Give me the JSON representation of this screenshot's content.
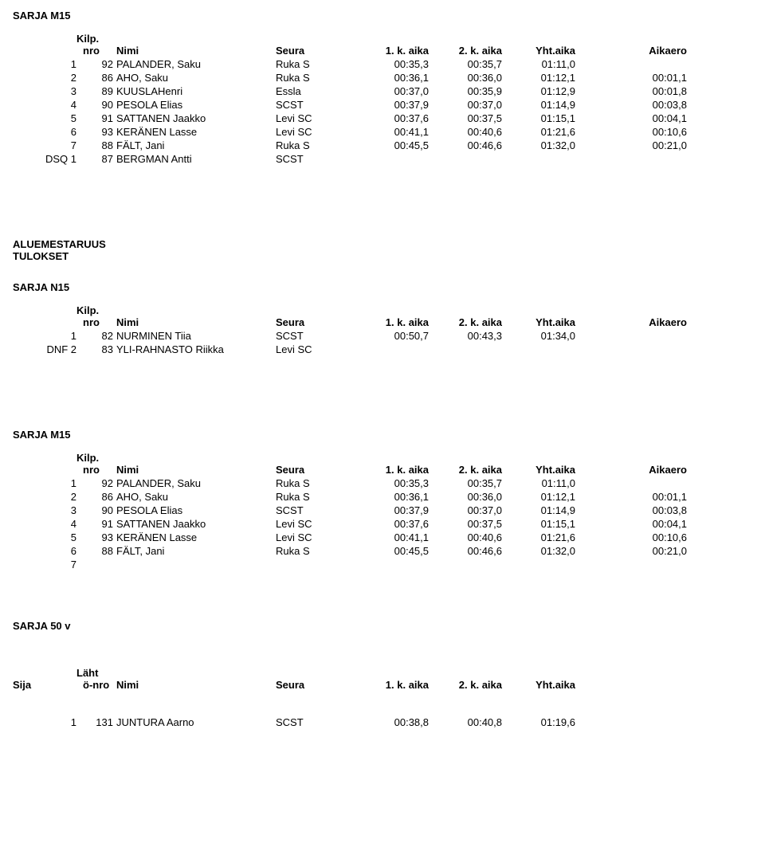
{
  "labels": {
    "kilp": "Kilp.",
    "nro": "nro",
    "nimi": "Nimi",
    "seura": "Seura",
    "aika1": "1. k. aika",
    "aika2": "2. k. aika",
    "yht": "Yht.aika",
    "aikaero": "Aikaero",
    "laht": "Läht",
    "onro": "ö-nro",
    "sija": "Sija"
  },
  "sections": {
    "m15a": {
      "title": "SARJA M15",
      "rows": [
        {
          "pre": "1",
          "nro": "92",
          "name": "PALANDER, Saku",
          "club": "Ruka S",
          "t1": "00:35,3",
          "t2": "00:35,7",
          "t3": "01:11,0",
          "t4": ""
        },
        {
          "pre": "2",
          "nro": "86",
          "name": "AHO, Saku",
          "club": "Ruka S",
          "t1": "00:36,1",
          "t2": "00:36,0",
          "t3": "01:12,1",
          "t4": "00:01,1"
        },
        {
          "pre": "3",
          "nro": "89",
          "name": "KUUSLAHenri",
          "club": "Essla",
          "t1": "00:37,0",
          "t2": "00:35,9",
          "t3": "01:12,9",
          "t4": "00:01,8"
        },
        {
          "pre": "4",
          "nro": "90",
          "name": "PESOLA Elias",
          "club": "SCST",
          "t1": "00:37,9",
          "t2": "00:37,0",
          "t3": "01:14,9",
          "t4": "00:03,8"
        },
        {
          "pre": "5",
          "nro": "91",
          "name": "SATTANEN Jaakko",
          "club": "Levi SC",
          "t1": "00:37,6",
          "t2": "00:37,5",
          "t3": "01:15,1",
          "t4": "00:04,1"
        },
        {
          "pre": "6",
          "nro": "93",
          "name": "KERÄNEN Lasse",
          "club": "Levi SC",
          "t1": "00:41,1",
          "t2": "00:40,6",
          "t3": "01:21,6",
          "t4": "00:10,6"
        },
        {
          "pre": "7",
          "nro": "88",
          "name": "FÄLT, Jani",
          "club": "Ruka S",
          "t1": "00:45,5",
          "t2": "00:46,6",
          "t3": "01:32,0",
          "t4": "00:21,0"
        },
        {
          "pre": "DSQ 1",
          "nro": "87",
          "name": "BERGMAN Antti",
          "club": "SCST",
          "t1": "",
          "t2": "",
          "t3": "",
          "t4": ""
        }
      ]
    },
    "aluemestaruus": {
      "line1": "ALUEMESTARUUS",
      "line2": "TULOKSET"
    },
    "n15": {
      "title": "SARJA N15",
      "rows": [
        {
          "pre": "1",
          "nro": "82",
          "name": "NURMINEN Tiia",
          "club": "SCST",
          "t1": "00:50,7",
          "t2": "00:43,3",
          "t3": "01:34,0",
          "t4": ""
        },
        {
          "pre": "DNF 2",
          "nro": "83",
          "name": "YLI-RAHNASTO Riikka",
          "club": "Levi SC",
          "t1": "",
          "t2": "",
          "t3": "",
          "t4": ""
        }
      ]
    },
    "m15b": {
      "title": "SARJA M15",
      "rows": [
        {
          "pre": "1",
          "nro": "92",
          "name": "PALANDER, Saku",
          "club": "Ruka S",
          "t1": "00:35,3",
          "t2": "00:35,7",
          "t3": "01:11,0",
          "t4": ""
        },
        {
          "pre": "2",
          "nro": "86",
          "name": "AHO, Saku",
          "club": "Ruka S",
          "t1": "00:36,1",
          "t2": "00:36,0",
          "t3": "01:12,1",
          "t4": "00:01,1"
        },
        {
          "pre": "3",
          "nro": "90",
          "name": "PESOLA Elias",
          "club": "SCST",
          "t1": "00:37,9",
          "t2": "00:37,0",
          "t3": "01:14,9",
          "t4": "00:03,8"
        },
        {
          "pre": "4",
          "nro": "91",
          "name": "SATTANEN Jaakko",
          "club": "Levi SC",
          "t1": "00:37,6",
          "t2": "00:37,5",
          "t3": "01:15,1",
          "t4": "00:04,1"
        },
        {
          "pre": "5",
          "nro": "93",
          "name": "KERÄNEN Lasse",
          "club": "Levi SC",
          "t1": "00:41,1",
          "t2": "00:40,6",
          "t3": "01:21,6",
          "t4": "00:10,6"
        },
        {
          "pre": "6",
          "nro": "88",
          "name": "FÄLT, Jani",
          "club": "Ruka S",
          "t1": "00:45,5",
          "t2": "00:46,6",
          "t3": "01:32,0",
          "t4": "00:21,0"
        },
        {
          "pre": "7",
          "nro": "",
          "name": "",
          "club": "",
          "t1": "",
          "t2": "",
          "t3": "",
          "t4": ""
        }
      ]
    },
    "s50": {
      "title": "SARJA 50 v",
      "rows": [
        {
          "pre": "1",
          "nro": "131",
          "name": "JUNTURA Aarno",
          "club": "SCST",
          "t1": "00:38,8",
          "t2": "00:40,8",
          "t3": "01:19,6",
          "t4": ""
        }
      ]
    }
  }
}
